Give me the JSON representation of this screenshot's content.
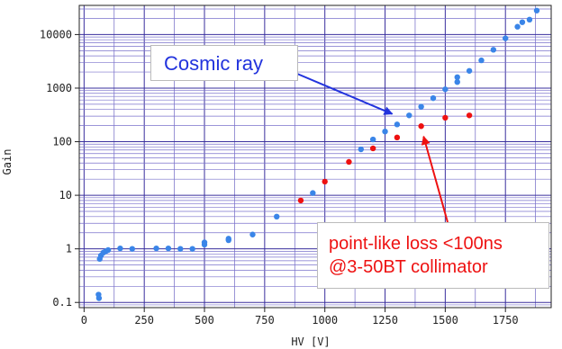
{
  "chart_data": {
    "type": "scatter",
    "xlabel": "HV [V]",
    "ylabel": "Gain",
    "xlim": [
      -20,
      1940
    ],
    "ylim": [
      0.08,
      35000
    ],
    "y_scale": "log",
    "x_ticks": [
      0,
      250,
      500,
      750,
      1000,
      1250,
      1500,
      1750
    ],
    "x_tick_labels": [
      "0",
      "250",
      "500",
      "750",
      "1000",
      "1250",
      "1500",
      "1750"
    ],
    "y_ticks": [
      0.1,
      1,
      10,
      100,
      1000,
      10000
    ],
    "y_tick_labels": [
      "0.1",
      "1",
      "10",
      "100",
      "1000",
      "10000"
    ],
    "grid": true,
    "series": [
      {
        "name": "",
        "color": "#3a85e8",
        "points": [
          [
            60,
            0.14
          ],
          [
            62,
            0.12
          ],
          [
            65,
            0.65
          ],
          [
            70,
            0.75
          ],
          [
            80,
            0.85
          ],
          [
            90,
            0.9
          ],
          [
            100,
            0.95
          ],
          [
            150,
            1.02
          ],
          [
            200,
            1.0
          ],
          [
            300,
            1.02
          ],
          [
            350,
            1.02
          ],
          [
            400,
            1.0
          ],
          [
            450,
            1.0
          ],
          [
            500,
            1.2
          ],
          [
            500,
            1.32
          ],
          [
            600,
            1.45
          ],
          [
            600,
            1.55
          ],
          [
            700,
            1.85
          ],
          [
            800,
            4.0
          ],
          [
            950,
            11
          ],
          [
            1150,
            72
          ],
          [
            1200,
            110
          ],
          [
            1250,
            155
          ],
          [
            1300,
            210
          ],
          [
            1350,
            310
          ],
          [
            1400,
            450
          ],
          [
            1450,
            650
          ],
          [
            1500,
            950
          ],
          [
            1550,
            1300
          ],
          [
            1550,
            1600
          ],
          [
            1600,
            2100
          ],
          [
            1650,
            3300
          ],
          [
            1700,
            5200
          ],
          [
            1750,
            8500
          ],
          [
            1800,
            14000
          ],
          [
            1820,
            17000
          ],
          [
            1850,
            19000
          ],
          [
            1880,
            28000
          ]
        ]
      },
      {
        "name": "",
        "color": "#ee1111",
        "points": [
          [
            900,
            8
          ],
          [
            1000,
            18
          ],
          [
            1100,
            42
          ],
          [
            1200,
            75
          ],
          [
            1300,
            120
          ],
          [
            1400,
            195
          ],
          [
            1500,
            280
          ],
          [
            1600,
            310
          ]
        ]
      }
    ],
    "annotations": [
      {
        "text": "Cosmic ray",
        "color": "#2233dd",
        "arrow_target": [
          1280,
          330
        ]
      },
      {
        "text_lines": [
          "point-like loss <100ns",
          "@3-50BT collimator"
        ],
        "color": "#ee1111",
        "arrow_target": [
          1410,
          125
        ]
      }
    ]
  }
}
